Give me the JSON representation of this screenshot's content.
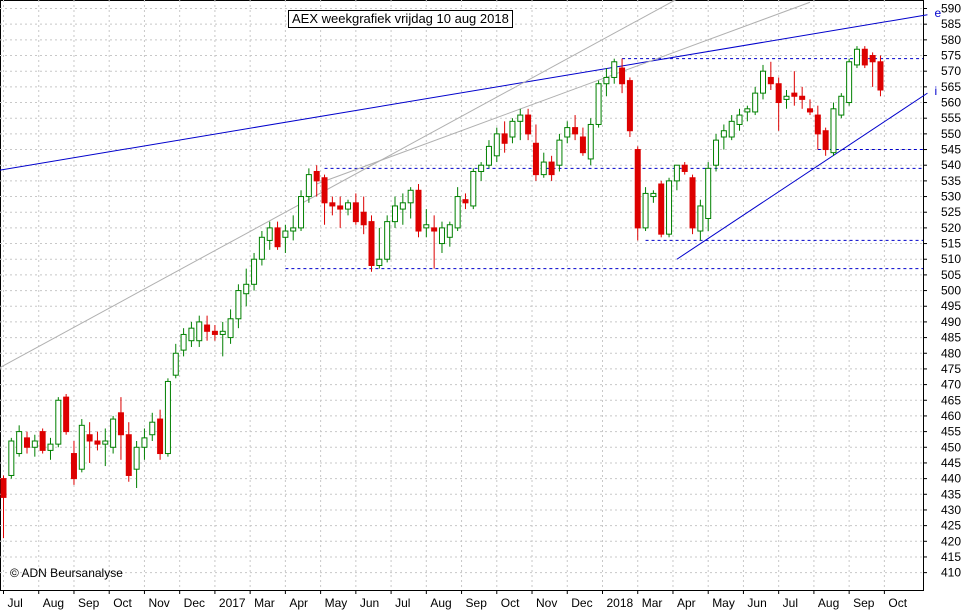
{
  "title": "AEX weekgrafiek vrijdag 10 aug 2018",
  "copyright": "© ADN Beursanalyse",
  "chart_data": {
    "type": "candlestick",
    "title": "AEX weekgrafiek vrijdag 10 aug 2018",
    "xlabel": "",
    "ylabel": "",
    "ylim": [
      405,
      590
    ],
    "ytick_step": 5,
    "grid": true,
    "x_tick_labels": [
      "Jul",
      "Aug",
      "Sep",
      "Oct",
      "Nov",
      "Dec",
      "2017",
      "Mar",
      "Apr",
      "May",
      "Jun",
      "Jul",
      "Aug",
      "Sep",
      "Oct",
      "Nov",
      "Dec",
      "2018",
      "Mar",
      "Apr",
      "May",
      "Jun",
      "Jul",
      "Aug",
      "Sep",
      "Oct"
    ],
    "x_tick_weeks": [
      0,
      4.5,
      9,
      13.5,
      18,
      22.5,
      27,
      31.5,
      36,
      40.5,
      45,
      49.5,
      54,
      58.5,
      63,
      67.5,
      72,
      76.5,
      81,
      85.5,
      90,
      94.5,
      99,
      103.5,
      108,
      112.5
    ],
    "candles": [
      {
        "o": 440,
        "h": 441,
        "l": 421,
        "c": 434
      },
      {
        "o": 441,
        "h": 453,
        "l": 440,
        "c": 452
      },
      {
        "o": 448,
        "h": 457,
        "l": 447,
        "c": 455
      },
      {
        "o": 453,
        "h": 455,
        "l": 448,
        "c": 450
      },
      {
        "o": 450,
        "h": 454,
        "l": 447,
        "c": 452
      },
      {
        "o": 455,
        "h": 456,
        "l": 448,
        "c": 449
      },
      {
        "o": 449,
        "h": 453,
        "l": 446,
        "c": 451
      },
      {
        "o": 451,
        "h": 466,
        "l": 450,
        "c": 465
      },
      {
        "o": 466,
        "h": 467,
        "l": 454,
        "c": 455
      },
      {
        "o": 448,
        "h": 452,
        "l": 438,
        "c": 440
      },
      {
        "o": 443,
        "h": 459,
        "l": 442,
        "c": 457
      },
      {
        "o": 454,
        "h": 458,
        "l": 445,
        "c": 452
      },
      {
        "o": 452,
        "h": 455,
        "l": 449,
        "c": 451
      },
      {
        "o": 451,
        "h": 456,
        "l": 444,
        "c": 452
      },
      {
        "o": 450,
        "h": 460,
        "l": 448,
        "c": 459
      },
      {
        "o": 461,
        "h": 466,
        "l": 446,
        "c": 454
      },
      {
        "o": 454,
        "h": 458,
        "l": 439,
        "c": 441
      },
      {
        "o": 443,
        "h": 452,
        "l": 437,
        "c": 450
      },
      {
        "o": 450,
        "h": 456,
        "l": 446,
        "c": 453
      },
      {
        "o": 454,
        "h": 461,
        "l": 452,
        "c": 458
      },
      {
        "o": 459,
        "h": 462,
        "l": 446,
        "c": 448
      },
      {
        "o": 448,
        "h": 472,
        "l": 447,
        "c": 471
      },
      {
        "o": 473,
        "h": 483,
        "l": 472,
        "c": 480
      },
      {
        "o": 481,
        "h": 488,
        "l": 479,
        "c": 486
      },
      {
        "o": 484,
        "h": 490,
        "l": 482,
        "c": 488
      },
      {
        "o": 484,
        "h": 492,
        "l": 482,
        "c": 490
      },
      {
        "o": 489,
        "h": 492,
        "l": 484,
        "c": 487
      },
      {
        "o": 487,
        "h": 489,
        "l": 484,
        "c": 486
      },
      {
        "o": 486,
        "h": 490,
        "l": 479,
        "c": 487
      },
      {
        "o": 485,
        "h": 494,
        "l": 483,
        "c": 491
      },
      {
        "o": 491,
        "h": 502,
        "l": 488,
        "c": 500
      },
      {
        "o": 499,
        "h": 507,
        "l": 495,
        "c": 502
      },
      {
        "o": 502,
        "h": 512,
        "l": 500,
        "c": 510
      },
      {
        "o": 510,
        "h": 519,
        "l": 508,
        "c": 517
      },
      {
        "o": 516,
        "h": 522,
        "l": 513,
        "c": 520
      },
      {
        "o": 520,
        "h": 522,
        "l": 513,
        "c": 514
      },
      {
        "o": 517,
        "h": 521,
        "l": 512,
        "c": 519
      },
      {
        "o": 519,
        "h": 524,
        "l": 516,
        "c": 520
      },
      {
        "o": 520,
        "h": 532,
        "l": 519,
        "c": 530
      },
      {
        "o": 530,
        "h": 539,
        "l": 528,
        "c": 537
      },
      {
        "o": 538,
        "h": 540,
        "l": 530,
        "c": 535
      },
      {
        "o": 536,
        "h": 537,
        "l": 521,
        "c": 528
      },
      {
        "o": 528,
        "h": 530,
        "l": 524,
        "c": 527
      },
      {
        "o": 527,
        "h": 530,
        "l": 520,
        "c": 526
      },
      {
        "o": 526,
        "h": 529,
        "l": 524,
        "c": 528
      },
      {
        "o": 528,
        "h": 531,
        "l": 521,
        "c": 522
      },
      {
        "o": 525,
        "h": 530,
        "l": 518,
        "c": 521
      },
      {
        "o": 522,
        "h": 524,
        "l": 506,
        "c": 508
      },
      {
        "o": 508,
        "h": 520,
        "l": 507,
        "c": 510
      },
      {
        "o": 510,
        "h": 524,
        "l": 509,
        "c": 522
      },
      {
        "o": 522,
        "h": 530,
        "l": 520,
        "c": 527
      },
      {
        "o": 526,
        "h": 531,
        "l": 521,
        "c": 528
      },
      {
        "o": 528,
        "h": 533,
        "l": 523,
        "c": 532
      },
      {
        "o": 532,
        "h": 534,
        "l": 517,
        "c": 519
      },
      {
        "o": 520,
        "h": 526,
        "l": 517,
        "c": 521
      },
      {
        "o": 520,
        "h": 524,
        "l": 507,
        "c": 519
      },
      {
        "o": 515,
        "h": 522,
        "l": 512,
        "c": 520
      },
      {
        "o": 517,
        "h": 522,
        "l": 514,
        "c": 521
      },
      {
        "o": 520,
        "h": 533,
        "l": 519,
        "c": 530
      },
      {
        "o": 529,
        "h": 531,
        "l": 526,
        "c": 528
      },
      {
        "o": 527,
        "h": 539,
        "l": 526,
        "c": 538
      },
      {
        "o": 538,
        "h": 541,
        "l": 535,
        "c": 540
      },
      {
        "o": 540,
        "h": 548,
        "l": 539,
        "c": 546
      },
      {
        "o": 543,
        "h": 552,
        "l": 541,
        "c": 550
      },
      {
        "o": 550,
        "h": 554,
        "l": 544,
        "c": 547
      },
      {
        "o": 549,
        "h": 555,
        "l": 547,
        "c": 554
      },
      {
        "o": 554,
        "h": 558,
        "l": 548,
        "c": 556
      },
      {
        "o": 556,
        "h": 558,
        "l": 548,
        "c": 550
      },
      {
        "o": 547,
        "h": 553,
        "l": 535,
        "c": 537
      },
      {
        "o": 537,
        "h": 544,
        "l": 536,
        "c": 541
      },
      {
        "o": 541,
        "h": 543,
        "l": 535,
        "c": 537
      },
      {
        "o": 540,
        "h": 550,
        "l": 538,
        "c": 548
      },
      {
        "o": 549,
        "h": 554,
        "l": 547,
        "c": 552
      },
      {
        "o": 552,
        "h": 556,
        "l": 548,
        "c": 550
      },
      {
        "o": 549,
        "h": 552,
        "l": 543,
        "c": 544
      },
      {
        "o": 542,
        "h": 555,
        "l": 540,
        "c": 553
      },
      {
        "o": 553,
        "h": 567,
        "l": 552,
        "c": 566
      },
      {
        "o": 566,
        "h": 571,
        "l": 562,
        "c": 568
      },
      {
        "o": 568,
        "h": 574,
        "l": 566,
        "c": 573
      },
      {
        "o": 571,
        "h": 574,
        "l": 563,
        "c": 566
      },
      {
        "o": 567,
        "h": 568,
        "l": 549,
        "c": 551
      },
      {
        "o": 545,
        "h": 546,
        "l": 516,
        "c": 520
      },
      {
        "o": 520,
        "h": 533,
        "l": 519,
        "c": 531
      },
      {
        "o": 530,
        "h": 532,
        "l": 528,
        "c": 531
      },
      {
        "o": 534,
        "h": 535,
        "l": 517,
        "c": 518
      },
      {
        "o": 518,
        "h": 536,
        "l": 517,
        "c": 535
      },
      {
        "o": 535,
        "h": 540,
        "l": 532,
        "c": 540
      },
      {
        "o": 540,
        "h": 541,
        "l": 537,
        "c": 538
      },
      {
        "o": 536,
        "h": 537,
        "l": 518,
        "c": 520
      },
      {
        "o": 519,
        "h": 529,
        "l": 516,
        "c": 527
      },
      {
        "o": 523,
        "h": 541,
        "l": 519,
        "c": 539
      },
      {
        "o": 540,
        "h": 550,
        "l": 538,
        "c": 548
      },
      {
        "o": 549,
        "h": 553,
        "l": 545,
        "c": 551
      },
      {
        "o": 549,
        "h": 556,
        "l": 548,
        "c": 554
      },
      {
        "o": 553,
        "h": 558,
        "l": 551,
        "c": 556
      },
      {
        "o": 557,
        "h": 559,
        "l": 554,
        "c": 558
      },
      {
        "o": 557,
        "h": 565,
        "l": 556,
        "c": 563
      },
      {
        "o": 563,
        "h": 572,
        "l": 561,
        "c": 570
      },
      {
        "o": 568,
        "h": 573,
        "l": 564,
        "c": 566
      },
      {
        "o": 566,
        "h": 568,
        "l": 551,
        "c": 560
      },
      {
        "o": 561,
        "h": 564,
        "l": 558,
        "c": 562
      },
      {
        "o": 563,
        "h": 570,
        "l": 559,
        "c": 562
      },
      {
        "o": 562,
        "h": 565,
        "l": 558,
        "c": 561
      },
      {
        "o": 558,
        "h": 561,
        "l": 556,
        "c": 557
      },
      {
        "o": 556,
        "h": 559,
        "l": 545,
        "c": 550
      },
      {
        "o": 551,
        "h": 552,
        "l": 543,
        "c": 545
      },
      {
        "o": 544,
        "h": 560,
        "l": 543,
        "c": 558
      },
      {
        "o": 556,
        "h": 563,
        "l": 555,
        "c": 562
      },
      {
        "o": 560,
        "h": 574,
        "l": 559,
        "c": 573
      },
      {
        "o": 572,
        "h": 578,
        "l": 571,
        "c": 577
      },
      {
        "o": 577,
        "h": 578,
        "l": 571,
        "c": 572
      },
      {
        "o": 575,
        "h": 576,
        "l": 565,
        "c": 573
      },
      {
        "o": 573,
        "h": 575,
        "l": 562,
        "c": 564
      }
    ],
    "trendlines": [
      {
        "label": "e",
        "color": "#0000cc",
        "x1": -1.5,
        "y1": 538,
        "x2": 118,
        "y2": 588
      },
      {
        "label": "i",
        "color": "#0000cc",
        "x1": 86,
        "y1": 510,
        "x2": 118,
        "y2": 563
      },
      {
        "label": "",
        "color": "#b0b0b0",
        "x1": -1.5,
        "y1": 474,
        "x2": 86,
        "y2": 593
      },
      {
        "label": "",
        "color": "#b0b0b0",
        "x1": 40,
        "y1": 534,
        "x2": 103,
        "y2": 592
      }
    ],
    "horizontal_levels": [
      {
        "value": 574,
        "from": 79
      },
      {
        "value": 545,
        "from": 104
      },
      {
        "value": 539,
        "from": 41
      },
      {
        "value": 516,
        "from": 82
      },
      {
        "value": 507,
        "from": 36
      }
    ]
  }
}
